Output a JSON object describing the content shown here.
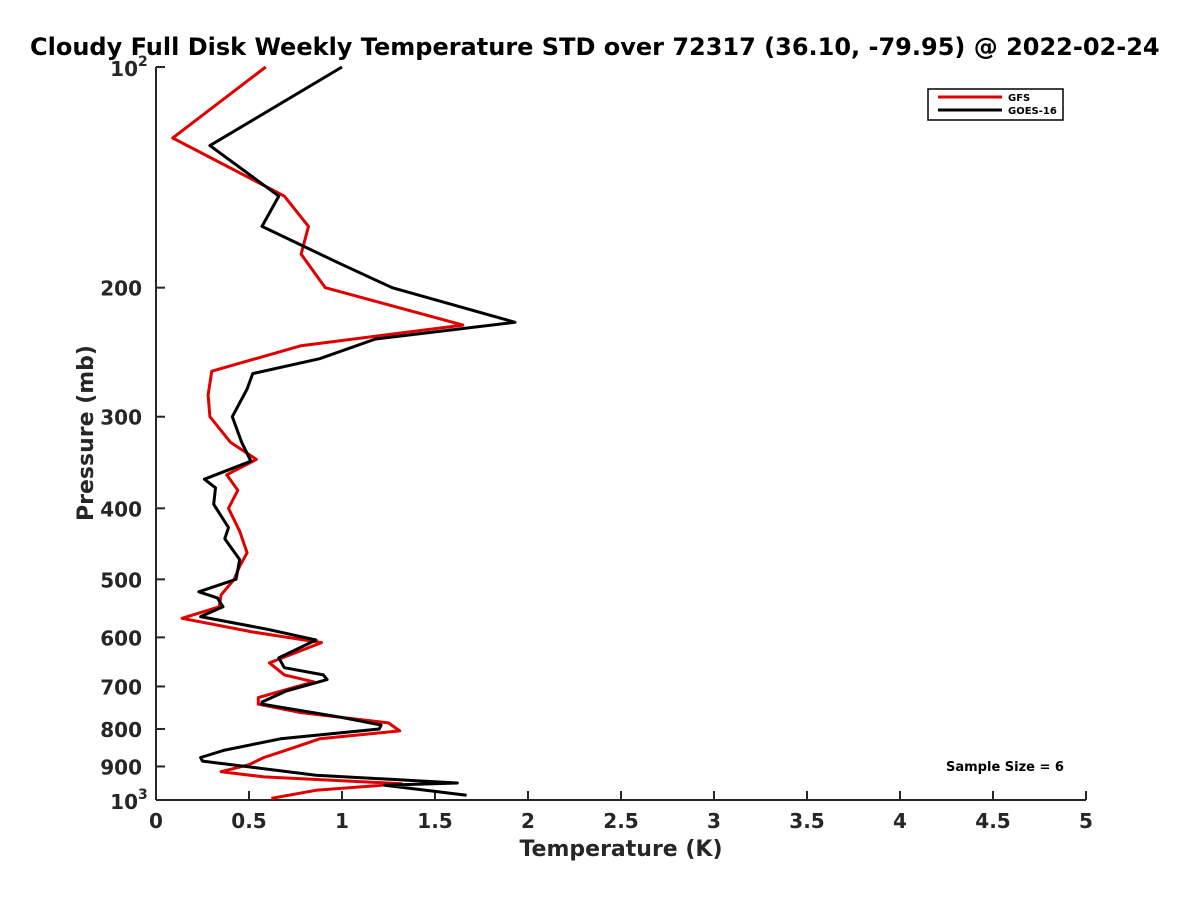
{
  "chart_data": {
    "type": "line",
    "title": "Cloudy Full Disk Weekly Temperature STD over 72317 (36.10, -79.95) @ 2022-02-24",
    "xlabel": "Temperature (K)",
    "ylabel": "Pressure (mb)",
    "xlim": [
      0,
      5
    ],
    "ylim": [
      100,
      1000
    ],
    "y_scale": "log",
    "y_reversed": true,
    "grid": false,
    "legend_position": "top-right",
    "x_ticks": [
      {
        "value": 0,
        "label": "0"
      },
      {
        "value": 0.5,
        "label": "0.5"
      },
      {
        "value": 1,
        "label": "1"
      },
      {
        "value": 1.5,
        "label": "1.5"
      },
      {
        "value": 2,
        "label": "2"
      },
      {
        "value": 2.5,
        "label": "2.5"
      },
      {
        "value": 3,
        "label": "3"
      },
      {
        "value": 3.5,
        "label": "3.5"
      },
      {
        "value": 4,
        "label": "4"
      },
      {
        "value": 4.5,
        "label": "4.5"
      },
      {
        "value": 5,
        "label": "5"
      }
    ],
    "y_ticks": [
      {
        "value": 100,
        "label": "10",
        "sup": "2"
      },
      {
        "value": 200,
        "label": "200"
      },
      {
        "value": 300,
        "label": "300"
      },
      {
        "value": 400,
        "label": "400"
      },
      {
        "value": 500,
        "label": "500"
      },
      {
        "value": 600,
        "label": "600"
      },
      {
        "value": 700,
        "label": "700"
      },
      {
        "value": 800,
        "label": "800"
      },
      {
        "value": 900,
        "label": "900"
      },
      {
        "value": 1000,
        "label": "10",
        "sup": "3"
      }
    ],
    "annotation": "Sample Size = 6",
    "series": [
      {
        "name": "GFS",
        "color": "#e00000",
        "points": [
          [
            0.59,
            100
          ],
          [
            0.09,
            125
          ],
          [
            0.69,
            150
          ],
          [
            0.82,
            165
          ],
          [
            0.78,
            180
          ],
          [
            0.91,
            200
          ],
          [
            1.65,
            225
          ],
          [
            0.78,
            240
          ],
          [
            0.3,
            260
          ],
          [
            0.28,
            280
          ],
          [
            0.29,
            300
          ],
          [
            0.4,
            325
          ],
          [
            0.54,
            343
          ],
          [
            0.38,
            360
          ],
          [
            0.44,
            378
          ],
          [
            0.39,
            400
          ],
          [
            0.45,
            430
          ],
          [
            0.49,
            460
          ],
          [
            0.45,
            480
          ],
          [
            0.42,
            500
          ],
          [
            0.35,
            525
          ],
          [
            0.34,
            545
          ],
          [
            0.14,
            565
          ],
          [
            0.52,
            590
          ],
          [
            0.89,
            610
          ],
          [
            0.61,
            650
          ],
          [
            0.69,
            675
          ],
          [
            0.85,
            690
          ],
          [
            0.76,
            700
          ],
          [
            0.55,
            725
          ],
          [
            0.55,
            740
          ],
          [
            0.78,
            760
          ],
          [
            1.25,
            785
          ],
          [
            1.31,
            805
          ],
          [
            0.88,
            825
          ],
          [
            0.73,
            850
          ],
          [
            0.58,
            875
          ],
          [
            0.5,
            895
          ],
          [
            0.35,
            915
          ],
          [
            0.58,
            930
          ],
          [
            1.32,
            950
          ],
          [
            0.86,
            970
          ],
          [
            0.62,
            995
          ]
        ]
      },
      {
        "name": "GOES-16",
        "color": "#000000",
        "points": [
          [
            1.0,
            100
          ],
          [
            0.29,
            128
          ],
          [
            0.66,
            150
          ],
          [
            0.57,
            165
          ],
          [
            0.98,
            185
          ],
          [
            1.27,
            200
          ],
          [
            1.93,
            223
          ],
          [
            1.18,
            235
          ],
          [
            0.88,
            250
          ],
          [
            0.52,
            262
          ],
          [
            0.49,
            275
          ],
          [
            0.41,
            300
          ],
          [
            0.46,
            325
          ],
          [
            0.51,
            345
          ],
          [
            0.26,
            365
          ],
          [
            0.32,
            375
          ],
          [
            0.31,
            395
          ],
          [
            0.39,
            425
          ],
          [
            0.37,
            440
          ],
          [
            0.45,
            470
          ],
          [
            0.43,
            500
          ],
          [
            0.23,
            520
          ],
          [
            0.33,
            530
          ],
          [
            0.36,
            545
          ],
          [
            0.24,
            562
          ],
          [
            0.6,
            585
          ],
          [
            0.86,
            605
          ],
          [
            0.66,
            640
          ],
          [
            0.69,
            660
          ],
          [
            0.9,
            675
          ],
          [
            0.92,
            685
          ],
          [
            0.7,
            710
          ],
          [
            0.57,
            735
          ],
          [
            0.57,
            740
          ],
          [
            0.98,
            770
          ],
          [
            1.21,
            790
          ],
          [
            1.2,
            800
          ],
          [
            0.67,
            825
          ],
          [
            0.37,
            855
          ],
          [
            0.24,
            875
          ],
          [
            0.25,
            885
          ],
          [
            0.86,
            925
          ],
          [
            1.62,
            948
          ],
          [
            1.23,
            955
          ],
          [
            1.67,
            985
          ]
        ]
      }
    ]
  }
}
